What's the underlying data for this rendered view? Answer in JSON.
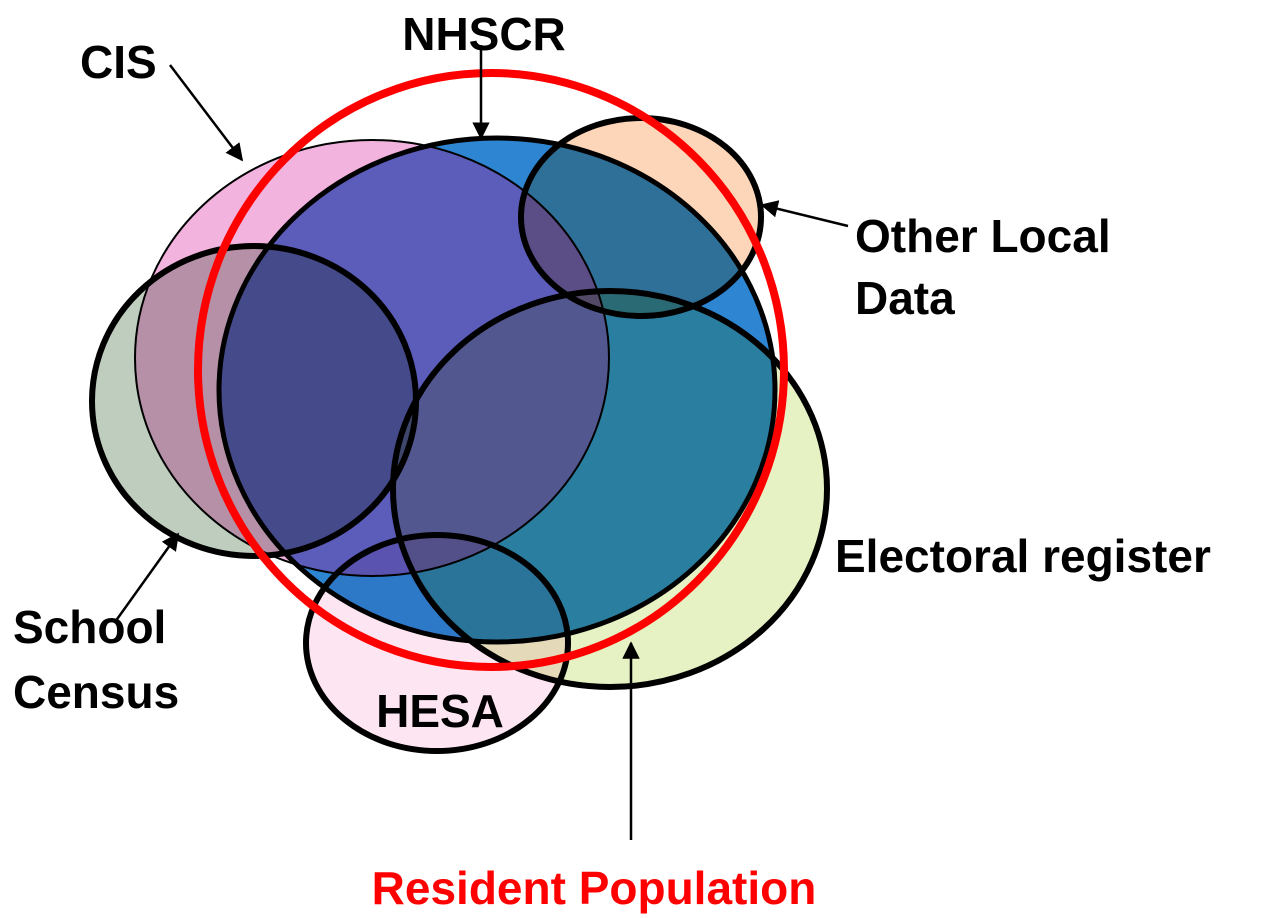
{
  "nodes": [
    {
      "id": "cis",
      "label": "CIS"
    },
    {
      "id": "nhscr",
      "label": "NHSCR"
    },
    {
      "id": "other",
      "label_lines": [
        "Other Local",
        "Data"
      ]
    },
    {
      "id": "electoral",
      "label": "Electoral register"
    },
    {
      "id": "school",
      "label_lines": [
        "School",
        "Census"
      ]
    },
    {
      "id": "hesa",
      "label": "HESA"
    },
    {
      "id": "resident",
      "label": "Resident Population"
    }
  ]
}
